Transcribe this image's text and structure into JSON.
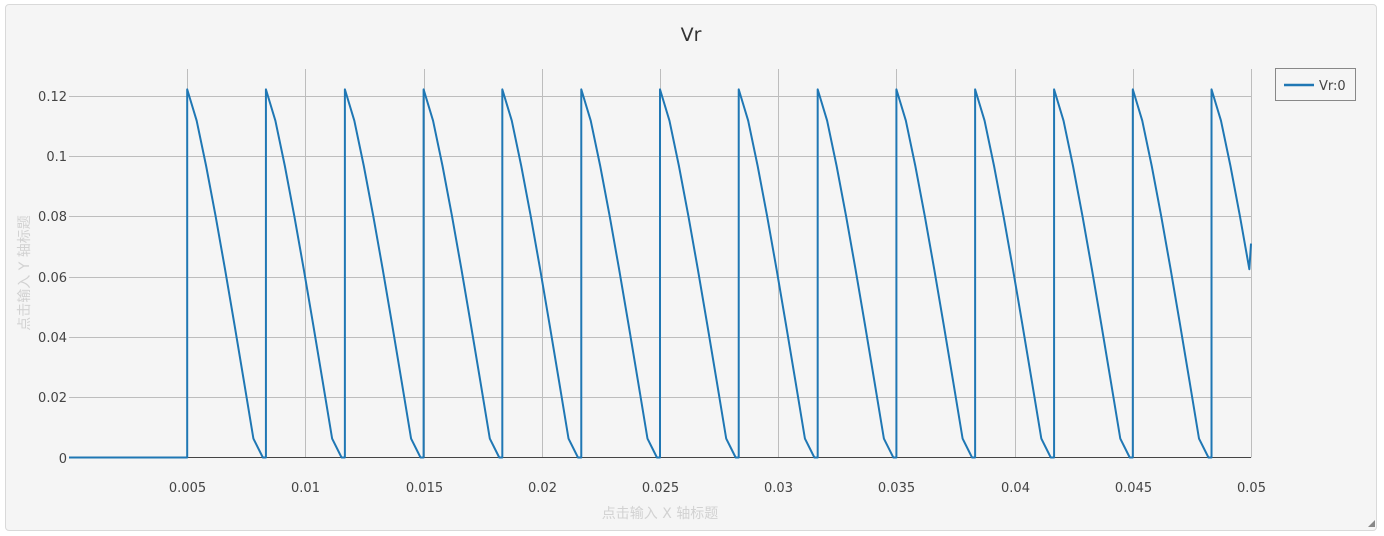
{
  "chart_data": {
    "type": "line",
    "title": "Vr",
    "xlabel": "点击输入 X 轴标题",
    "ylabel": "点击输入 Y 轴标题",
    "xlim": [
      0,
      0.05
    ],
    "ylim": [
      0,
      0.13
    ],
    "x_ticks": [
      0.005,
      0.01,
      0.015,
      0.02,
      0.025,
      0.03,
      0.035,
      0.04,
      0.045,
      0.05
    ],
    "x_tick_labels": [
      "0.005",
      "0.01",
      "0.015",
      "0.02",
      "0.025",
      "0.03",
      "0.035",
      "0.04",
      "0.045",
      "0.05"
    ],
    "y_ticks": [
      0,
      0.02,
      0.04,
      0.06,
      0.08,
      0.1,
      0.12
    ],
    "y_tick_labels": [
      "0",
      "0.02",
      "0.04",
      "0.06",
      "0.08",
      "0.1",
      "0.12"
    ],
    "grid": true,
    "legend": "top-right",
    "series": [
      {
        "name": "Vr:0",
        "color": "#1f77b4",
        "x": [
          0,
          0.005,
          0.005,
          0.0054,
          0.0058,
          0.0062,
          0.0066,
          0.007,
          0.0074,
          0.0078,
          0.0082,
          0.00833,
          0.00833,
          0.00873,
          0.00913,
          0.00953,
          0.00993,
          0.01033,
          0.01073,
          0.01113,
          0.01153,
          0.01167,
          0.01167,
          0.01207,
          0.01247,
          0.01287,
          0.01327,
          0.01367,
          0.01407,
          0.01447,
          0.01487,
          0.015,
          0.015,
          0.0154,
          0.0158,
          0.0162,
          0.0166,
          0.017,
          0.0174,
          0.0178,
          0.0182,
          0.01833,
          0.01833,
          0.01873,
          0.01913,
          0.01953,
          0.01993,
          0.02033,
          0.02073,
          0.02113,
          0.02153,
          0.02167,
          0.02167,
          0.02207,
          0.02247,
          0.02287,
          0.02327,
          0.02367,
          0.02407,
          0.02447,
          0.02487,
          0.025,
          0.025,
          0.0254,
          0.0258,
          0.0262,
          0.0266,
          0.027,
          0.0274,
          0.0278,
          0.0282,
          0.02833,
          0.02833,
          0.02873,
          0.02913,
          0.02953,
          0.02993,
          0.03033,
          0.03073,
          0.03113,
          0.03153,
          0.03167,
          0.03167,
          0.03207,
          0.03247,
          0.03287,
          0.03327,
          0.03367,
          0.03407,
          0.03447,
          0.03487,
          0.035,
          0.035,
          0.0354,
          0.0358,
          0.0362,
          0.0366,
          0.037,
          0.0374,
          0.0378,
          0.0382,
          0.03833,
          0.03833,
          0.03873,
          0.03913,
          0.03953,
          0.03993,
          0.04033,
          0.04073,
          0.04113,
          0.04153,
          0.04167,
          0.04167,
          0.04207,
          0.04247,
          0.04287,
          0.04327,
          0.04367,
          0.04407,
          0.04447,
          0.04487,
          0.045,
          0.045,
          0.0454,
          0.0458,
          0.0462,
          0.0466,
          0.047,
          0.0474,
          0.0478,
          0.0482,
          0.04833,
          0.04833,
          0.04873,
          0.04913,
          0.04953,
          0.04993,
          0.05
        ],
        "y": [
          0,
          0,
          0.1222,
          0.1118,
          0.0968,
          0.0802,
          0.0625,
          0.0441,
          0.0253,
          0.0063,
          0,
          0,
          0.1222,
          0.1118,
          0.0968,
          0.0802,
          0.0625,
          0.0441,
          0.0253,
          0.0063,
          0,
          0,
          0.1222,
          0.1118,
          0.0968,
          0.0802,
          0.0625,
          0.0441,
          0.0253,
          0.0063,
          0,
          0,
          0.1222,
          0.1118,
          0.0968,
          0.0802,
          0.0625,
          0.0441,
          0.0253,
          0.0063,
          0,
          0,
          0.1222,
          0.1118,
          0.0968,
          0.0802,
          0.0625,
          0.0441,
          0.0253,
          0.0063,
          0,
          0,
          0.1222,
          0.1118,
          0.0968,
          0.0802,
          0.0625,
          0.0441,
          0.0253,
          0.0063,
          0,
          0,
          0.1222,
          0.1118,
          0.0968,
          0.0802,
          0.0625,
          0.0441,
          0.0253,
          0.0063,
          0,
          0,
          0.1222,
          0.1118,
          0.0968,
          0.0802,
          0.0625,
          0.0441,
          0.0253,
          0.0063,
          0,
          0,
          0.1222,
          0.1118,
          0.0968,
          0.0802,
          0.0625,
          0.0441,
          0.0253,
          0.0063,
          0,
          0,
          0.1222,
          0.1118,
          0.0968,
          0.0802,
          0.0625,
          0.0441,
          0.0253,
          0.0063,
          0,
          0,
          0.1222,
          0.1118,
          0.0968,
          0.0802,
          0.0625,
          0.0441,
          0.0253,
          0.0063,
          0,
          0,
          0.1222,
          0.1118,
          0.0968,
          0.0802,
          0.0625,
          0.0441,
          0.0253,
          0.0063,
          0,
          0,
          0.1222,
          0.1118,
          0.0968,
          0.0802,
          0.0625,
          0.0441,
          0.0253,
          0.0063,
          0,
          0,
          0.1222,
          0.1118,
          0.0968,
          0.0802,
          0.0625,
          0.071
        ]
      }
    ]
  }
}
